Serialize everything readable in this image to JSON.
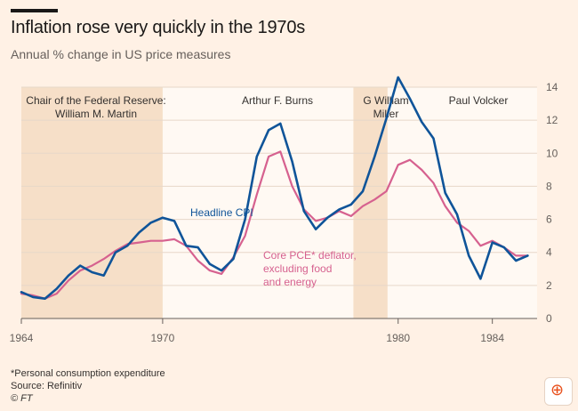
{
  "header": {
    "title": "Inflation rose very quickly in the 1970s",
    "subtitle": "Annual % change in US price measures"
  },
  "footer": {
    "note": "*Personal consumption expenditure",
    "source": "Source: Refinitiv",
    "credit": "© FT"
  },
  "toolbar": {
    "zoom_icon": "zoom-in-icon"
  },
  "chart_data": {
    "type": "line",
    "x_range": [
      1964,
      1985.9
    ],
    "ylim": [
      0,
      14
    ],
    "yticks": [
      0,
      2,
      4,
      6,
      8,
      10,
      12,
      14
    ],
    "xticks": [
      1964,
      1970,
      1980,
      1984
    ],
    "xticks_labeled": [
      1964,
      1970,
      1980,
      1984
    ],
    "grid": true,
    "eras": [
      {
        "name": "Chair of the Federal Reserve:\nWilliam M. Martin",
        "start": 1964,
        "end": 1970,
        "shaded": true
      },
      {
        "name": "Arthur F. Burns",
        "start": 1970,
        "end": 1978.1,
        "shaded": false
      },
      {
        "name": "G William\nMiller",
        "start": 1978.1,
        "end": 1979.55,
        "shaded": true
      },
      {
        "name": "Paul Volcker",
        "start": 1979.55,
        "end": 1985.9,
        "shaded": false
      }
    ],
    "series": [
      {
        "name": "Headline CPI",
        "color": "#0f5499",
        "x": [
          1964,
          1964.5,
          1965,
          1965.5,
          1966,
          1966.5,
          1967,
          1967.5,
          1968,
          1968.5,
          1969,
          1969.5,
          1970,
          1970.5,
          1971,
          1971.5,
          1972,
          1972.5,
          1973,
          1973.5,
          1974,
          1974.5,
          1975,
          1975.5,
          1976,
          1976.5,
          1977,
          1977.5,
          1978,
          1978.5,
          1979,
          1979.5,
          1980,
          1980.5,
          1981,
          1981.5,
          1982,
          1982.5,
          1983,
          1983.5,
          1984,
          1984.5,
          1985,
          1985.5
        ],
        "values": [
          1.6,
          1.3,
          1.2,
          1.8,
          2.6,
          3.2,
          2.8,
          2.6,
          4.0,
          4.4,
          5.2,
          5.8,
          6.1,
          5.9,
          4.4,
          4.3,
          3.3,
          2.9,
          3.6,
          6.0,
          9.8,
          11.4,
          11.8,
          9.5,
          6.5,
          5.4,
          6.1,
          6.6,
          6.9,
          7.7,
          9.8,
          12.1,
          14.6,
          13.3,
          11.9,
          10.9,
          7.6,
          6.3,
          3.8,
          2.4,
          4.6,
          4.3,
          3.5,
          3.8
        ]
      },
      {
        "name": "Core PCE* deflator, excluding food and energy",
        "color": "#d6618f",
        "x": [
          1964,
          1964.5,
          1965,
          1965.5,
          1966,
          1966.5,
          1967,
          1967.5,
          1968,
          1968.5,
          1969,
          1969.5,
          1970,
          1970.5,
          1971,
          1971.5,
          1972,
          1972.5,
          1973,
          1973.5,
          1974,
          1974.5,
          1975,
          1975.5,
          1976,
          1976.5,
          1977,
          1977.5,
          1978,
          1978.5,
          1979,
          1979.5,
          1980,
          1980.5,
          1981,
          1981.5,
          1982,
          1982.5,
          1983,
          1983.5,
          1984,
          1984.5,
          1985,
          1985.5
        ],
        "values": [
          1.5,
          1.4,
          1.2,
          1.5,
          2.3,
          2.9,
          3.2,
          3.6,
          4.1,
          4.5,
          4.6,
          4.7,
          4.7,
          4.8,
          4.4,
          3.5,
          2.9,
          2.7,
          3.7,
          5.0,
          7.5,
          9.8,
          10.1,
          8.0,
          6.6,
          5.9,
          6.1,
          6.5,
          6.2,
          6.8,
          7.2,
          7.7,
          9.3,
          9.6,
          9.0,
          8.2,
          6.8,
          5.8,
          5.3,
          4.4,
          4.7,
          4.3,
          3.8,
          3.8
        ]
      }
    ],
    "annotations": [
      {
        "text": "Headline CPI",
        "series": "Headline CPI"
      },
      {
        "text": "Core PCE* deflator,\nexcluding food\nand energy",
        "series": "Core PCE* deflator, excluding food and energy"
      }
    ]
  }
}
